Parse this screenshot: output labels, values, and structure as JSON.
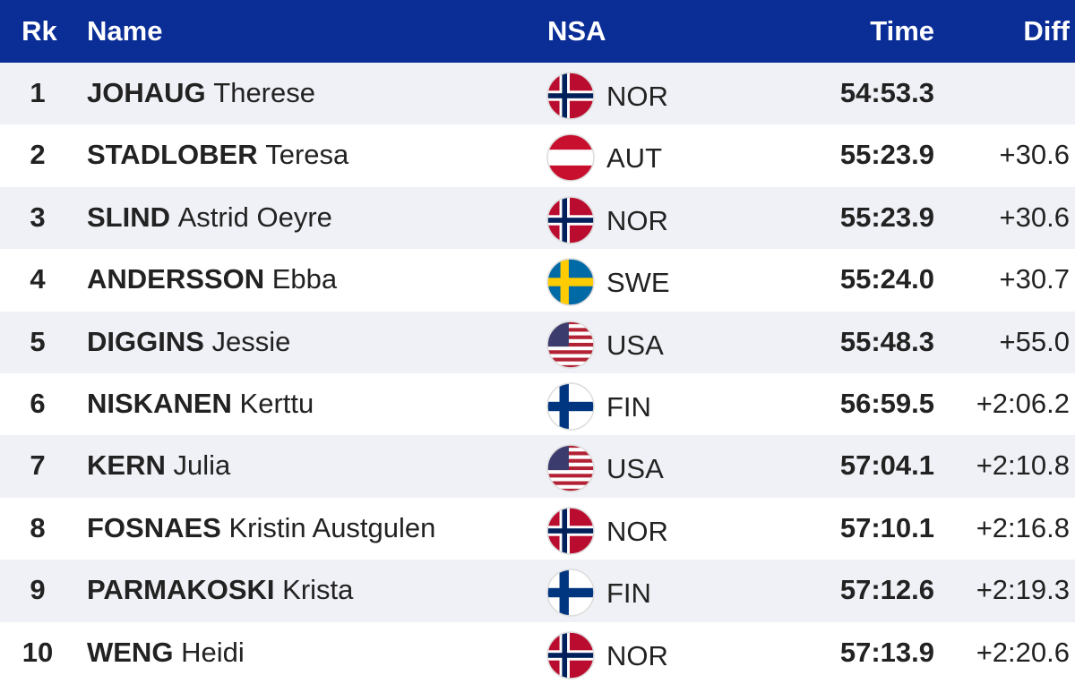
{
  "header": {
    "rank": "Rk",
    "name": "Name",
    "nsa": "NSA",
    "time": "Time",
    "diff": "Diff"
  },
  "rows": [
    {
      "rank": 1,
      "last": "JOHAUG",
      "first": "Therese",
      "nsa": "NOR",
      "time": "54:53.3"
    },
    {
      "rank": 2,
      "last": "STADLOBER",
      "first": "Teresa",
      "nsa": "AUT",
      "time": "55:23.9",
      "diff": "+30.6"
    },
    {
      "rank": 3,
      "last": "SLIND",
      "first": "Astrid Oeyre",
      "nsa": "NOR",
      "time": "55:23.9",
      "diff": "+30.6"
    },
    {
      "rank": 4,
      "last": "ANDERSSON",
      "first": "Ebba",
      "nsa": "SWE",
      "time": "55:24.0",
      "diff": "+30.7"
    },
    {
      "rank": 5,
      "last": "DIGGINS",
      "first": "Jessie",
      "nsa": "USA",
      "time": "55:48.3",
      "diff": "+55.0"
    },
    {
      "rank": 6,
      "last": "NISKANEN",
      "first": "Kerttu",
      "nsa": "FIN",
      "time": "56:59.5",
      "diff": "+2:06.2"
    },
    {
      "rank": 7,
      "last": "KERN",
      "first": "Julia",
      "nsa": "USA",
      "time": "57:04.1",
      "diff": "+2:10.8"
    },
    {
      "rank": 8,
      "last": "FOSNAES",
      "first": "Kristin Austgulen",
      "nsa": "NOR",
      "time": "57:10.1",
      "diff": "+2:16.8"
    },
    {
      "rank": 9,
      "last": "PARMAKOSKI",
      "first": "Krista",
      "nsa": "FIN",
      "time": "57:12.6",
      "diff": "+2:19.3"
    },
    {
      "rank": 10,
      "last": "WENG",
      "first": "Heidi",
      "nsa": "NOR",
      "time": "57:13.9",
      "diff": "+2:20.6"
    }
  ]
}
